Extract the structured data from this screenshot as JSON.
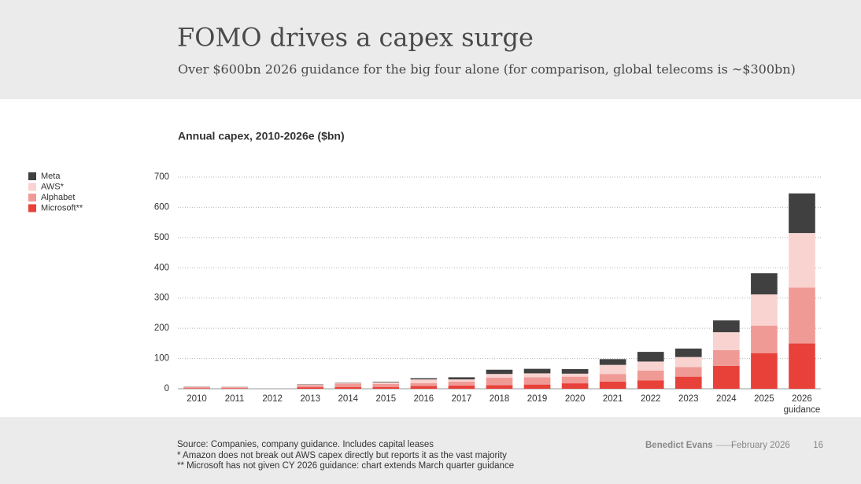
{
  "header": {
    "title": "FOMO drives a capex surge",
    "subtitle": "Over $600bn 2026 guidance for the big four alone (for comparison, global telecoms is ~$300bn)"
  },
  "chart_data": {
    "type": "stacked_bar",
    "title": "Annual capex, 2010-2026e ($bn)",
    "categories": [
      "2010",
      "2011",
      "2012",
      "2013",
      "2014",
      "2015",
      "2016",
      "2017",
      "2018",
      "2019",
      "2020",
      "2021",
      "2022",
      "2023",
      "2024",
      "2025",
      "2026 guidance"
    ],
    "series": [
      {
        "name": "Microsoft**",
        "color": "#e8413a",
        "values": [
          2,
          2,
          null,
          5,
          6,
          6,
          9,
          11,
          12,
          14,
          18,
          24,
          28,
          40,
          76,
          118,
          150
        ]
      },
      {
        "name": "Alphabet",
        "color": "#f09a96",
        "values": [
          4,
          3,
          null,
          7,
          11,
          10,
          10,
          13,
          25,
          24,
          22,
          25,
          32,
          32,
          52,
          91,
          185
        ]
      },
      {
        "name": "AWS*",
        "color": "#f8d3d0",
        "values": [
          1,
          1,
          null,
          2,
          2,
          5,
          12,
          7,
          12,
          13,
          10,
          30,
          30,
          33,
          59,
          103,
          180
        ]
      },
      {
        "name": "Meta",
        "color": "#404040",
        "values": [
          0.6,
          0.6,
          null,
          1,
          1,
          2,
          4,
          7,
          14,
          15,
          15,
          19,
          32,
          28,
          39,
          70,
          131
        ]
      }
    ],
    "ylim": [
      0,
      700
    ],
    "yticks": [
      0,
      100,
      200,
      300,
      400,
      500,
      600,
      700
    ],
    "grid": true,
    "legend": "left"
  },
  "footer": {
    "notes": [
      "Source: Companies, company guidance. Includes capital leases",
      "*  Amazon does not break out AWS capex directly but reports it as the vast majority",
      "** Microsoft has not given CY 2026 guidance: chart extends March quarter guidance"
    ],
    "author": "Benedict Evans",
    "date": "February 2026",
    "page": "16"
  }
}
